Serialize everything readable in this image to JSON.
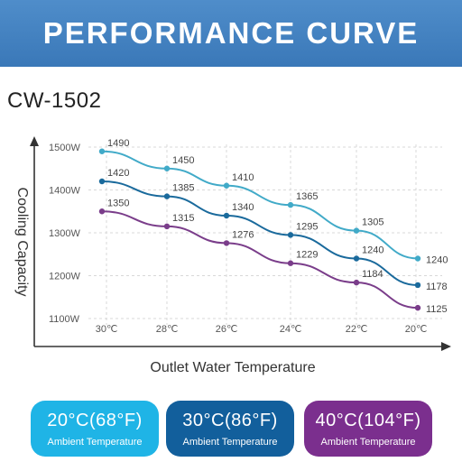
{
  "banner": {
    "title": "PERFORMANCE CURVE"
  },
  "model": "CW-1502",
  "chart_data": {
    "type": "line",
    "xlabel": "Outlet Water Temperature",
    "ylabel": "Cooling Capacity",
    "categories": [
      "30℃",
      "28℃",
      "26℃",
      "24℃",
      "22℃",
      "20℃"
    ],
    "yticks": [
      "1100W",
      "1200W",
      "1300W",
      "1400W",
      "1500W"
    ],
    "ylim": [
      1100,
      1500
    ],
    "grid": true,
    "series": [
      {
        "name": "20°C(68°F)",
        "color": "#41aac8",
        "values": [
          1490,
          1450,
          1410,
          1365,
          1305,
          1240
        ]
      },
      {
        "name": "30°C(86°F)",
        "color": "#1a6a9c",
        "values": [
          1420,
          1385,
          1340,
          1295,
          1240,
          1178
        ]
      },
      {
        "name": "40°C(104°F)",
        "color": "#7a3d8a",
        "values": [
          1350,
          1315,
          1276,
          1229,
          1184,
          1125
        ]
      }
    ]
  },
  "legend": [
    {
      "title": "20°C(68°F)",
      "subtitle": "Ambient Temperature",
      "color": "#1fb4e6"
    },
    {
      "title": "30°C(86°F)",
      "subtitle": "Ambient Temperature",
      "color": "#125f9c"
    },
    {
      "title": "40°C(104°F)",
      "subtitle": "Ambient Temperature",
      "color": "#7b2f8e"
    }
  ]
}
